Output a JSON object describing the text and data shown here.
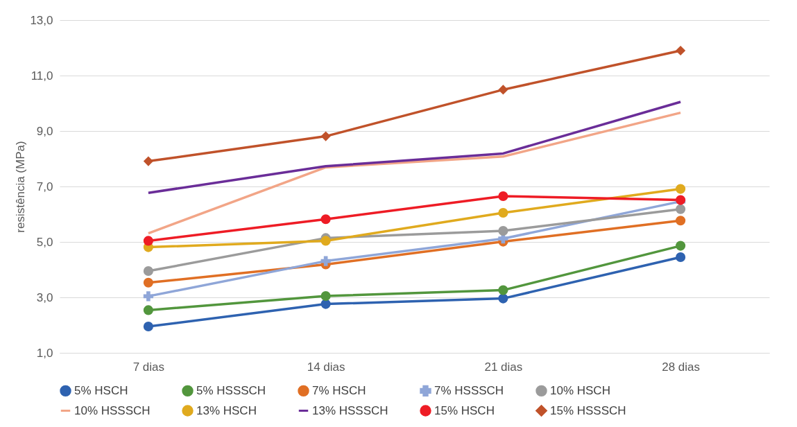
{
  "chart_data": {
    "type": "line",
    "ylabel": "resistência (MPa)",
    "categories": [
      "7 dias",
      "14 dias",
      "21 dias",
      "28 dias"
    ],
    "ylim": [
      1,
      13
    ],
    "yticks": [
      {
        "value": 1,
        "label": "1,0"
      },
      {
        "value": 3,
        "label": "3,0"
      },
      {
        "value": 5,
        "label": "5,0"
      },
      {
        "value": 7,
        "label": "7,0"
      },
      {
        "value": 9,
        "label": "9,0"
      },
      {
        "value": 11,
        "label": "11,0"
      },
      {
        "value": 13,
        "label": "13,0"
      }
    ],
    "grid": "y",
    "legend": "bottom",
    "line_style": "solid",
    "series": [
      {
        "name": "5% HSCH",
        "color": "#2e62b0",
        "marker": "circle",
        "values": [
          1.95,
          2.76,
          2.96,
          4.45
        ]
      },
      {
        "name": "5% HSSSCH",
        "color": "#52963d",
        "marker": "circle",
        "values": [
          2.54,
          3.05,
          3.26,
          4.86
        ]
      },
      {
        "name": "7% HSCH",
        "color": "#e06f24",
        "marker": "circle",
        "values": [
          3.53,
          4.19,
          5.01,
          5.77
        ]
      },
      {
        "name": "7% HSSSCH",
        "color": "#8fa6d8",
        "marker": "cross",
        "values": [
          3.04,
          4.31,
          5.12,
          6.46
        ]
      },
      {
        "name": "10% HSCH",
        "color": "#9b9b9b",
        "marker": "circle",
        "values": [
          3.95,
          5.14,
          5.4,
          6.18
        ]
      },
      {
        "name": "10% HSSSCH",
        "color": "#f2a587",
        "marker": "none",
        "values": [
          5.31,
          7.69,
          8.08,
          9.66
        ]
      },
      {
        "name": "13% HSCH",
        "color": "#e0aa1e",
        "marker": "circle",
        "values": [
          4.81,
          5.04,
          6.05,
          6.91
        ]
      },
      {
        "name": "13% HSSSCH",
        "color": "#6a2d98",
        "marker": "none",
        "values": [
          6.77,
          7.73,
          8.19,
          10.05
        ]
      },
      {
        "name": "15% HSCH",
        "color": "#ee1c25",
        "marker": "circle",
        "values": [
          5.04,
          5.82,
          6.65,
          6.51
        ]
      },
      {
        "name": "15% HSSSCH",
        "color": "#c0522a",
        "marker": "diamond",
        "values": [
          7.91,
          8.81,
          10.49,
          11.9
        ]
      }
    ]
  }
}
